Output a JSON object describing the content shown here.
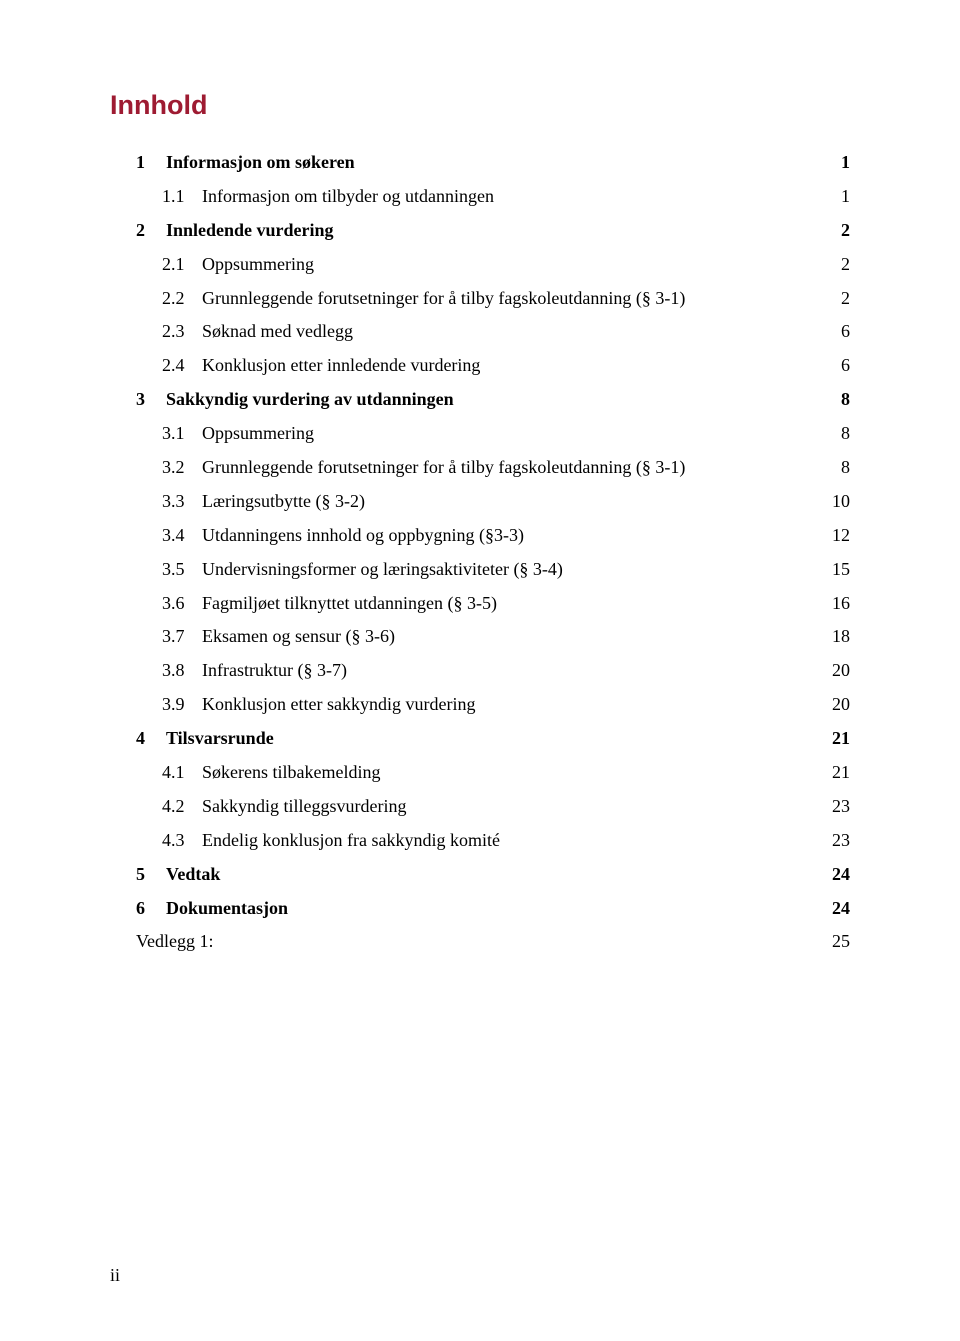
{
  "heading": {
    "text": "Innhold",
    "color": "#9e1b32",
    "fontsize": 27
  },
  "page_footer": "ii",
  "typography": {
    "body_fontsize": 18,
    "heading_font": "Arial",
    "body_font": "Times New Roman"
  },
  "toc": [
    {
      "level": 0,
      "num": "1",
      "label": "Informasjon om søkeren",
      "page": "1"
    },
    {
      "level": 1,
      "num": "1.1",
      "label": "Informasjon om tilbyder og utdanningen",
      "page": "1"
    },
    {
      "level": 0,
      "num": "2",
      "label": "Innledende vurdering",
      "page": "2"
    },
    {
      "level": 1,
      "num": "2.1",
      "label": "Oppsummering",
      "page": "2"
    },
    {
      "level": 1,
      "num": "2.2",
      "label": "Grunnleggende forutsetninger for å tilby fagskoleutdanning (§ 3-1)",
      "page": "2"
    },
    {
      "level": 1,
      "num": "2.3",
      "label": "Søknad med vedlegg",
      "page": "6"
    },
    {
      "level": 1,
      "num": "2.4",
      "label": "Konklusjon etter innledende vurdering",
      "page": "6"
    },
    {
      "level": 0,
      "num": "3",
      "label": "Sakkyndig vurdering av utdanningen",
      "page": "8"
    },
    {
      "level": 1,
      "num": "3.1",
      "label": "Oppsummering",
      "page": "8"
    },
    {
      "level": 1,
      "num": "3.2",
      "label": "Grunnleggende forutsetninger for å tilby fagskoleutdanning (§ 3-1)",
      "page": "8"
    },
    {
      "level": 1,
      "num": "3.3",
      "label": "Læringsutbytte (§ 3-2)",
      "page": "10"
    },
    {
      "level": 1,
      "num": "3.4",
      "label": "Utdanningens innhold og oppbygning (§3-3)",
      "page": "12"
    },
    {
      "level": 1,
      "num": "3.5",
      "label": "Undervisningsformer og læringsaktiviteter (§ 3-4)",
      "page": "15"
    },
    {
      "level": 1,
      "num": "3.6",
      "label": "Fagmiljøet tilknyttet utdanningen (§ 3-5)",
      "page": "16"
    },
    {
      "level": 1,
      "num": "3.7",
      "label": "Eksamen og sensur (§ 3-6)",
      "page": "18"
    },
    {
      "level": 1,
      "num": "3.8",
      "label": "Infrastruktur (§ 3-7)",
      "page": "20"
    },
    {
      "level": 1,
      "num": "3.9",
      "label": "Konklusjon etter sakkyndig vurdering",
      "page": "20"
    },
    {
      "level": 0,
      "num": "4",
      "label": "Tilsvarsrunde",
      "page": "21"
    },
    {
      "level": 1,
      "num": "4.1",
      "label": "Søkerens tilbakemelding",
      "page": "21"
    },
    {
      "level": 1,
      "num": "4.2",
      "label": "Sakkyndig tilleggsvurdering",
      "page": "23"
    },
    {
      "level": 1,
      "num": "4.3",
      "label": "Endelig konklusjon fra sakkyndig komité",
      "page": "23"
    },
    {
      "level": 0,
      "num": "5",
      "label": "Vedtak",
      "page": "24"
    },
    {
      "level": 0,
      "num": "6",
      "label": "Dokumentasjon",
      "page": "24"
    },
    {
      "level": -1,
      "num": "",
      "label": "Vedlegg 1:",
      "page": "25"
    }
  ]
}
